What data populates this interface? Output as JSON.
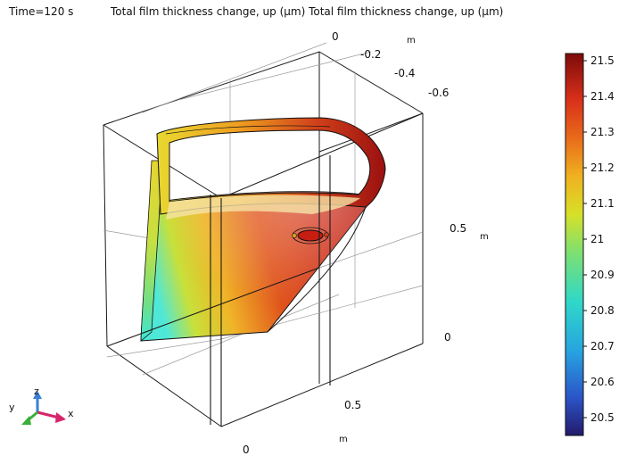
{
  "header": {
    "time_label": "Time=120 s",
    "plot_title": "Total film thickness change, up (µm) Total film thickness change, up (µm)"
  },
  "axes": {
    "top_ticks": [
      "0",
      "-0.2",
      "-0.4",
      "-0.6"
    ],
    "top_unit": "m",
    "right_ticks": [
      "0.5",
      "0"
    ],
    "right_unit": "m",
    "bottom_ticks": [
      "0.5",
      "0"
    ],
    "bottom_unit": "m"
  },
  "triad": {
    "x": "x",
    "y": "y",
    "z": "z"
  },
  "colorbar": {
    "colormap": "rainbow",
    "min": 20.45,
    "max": 21.52,
    "ticks": [
      "21.5",
      "21.4",
      "21.3",
      "21.2",
      "21.1",
      "21",
      "20.9",
      "20.8",
      "20.7",
      "20.6",
      "20.5"
    ]
  },
  "colors": {
    "low": "#2b3a9e",
    "mid": "#9fe03b",
    "high": "#8b0a0a"
  }
}
